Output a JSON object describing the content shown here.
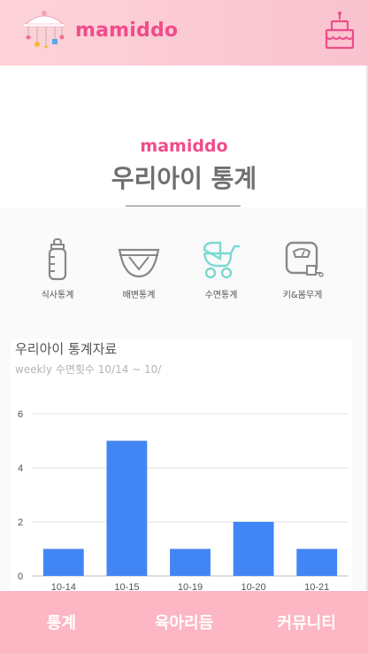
{
  "header": {
    "brand": "mamiddo",
    "icons": {
      "left": "baby-mobile-icon",
      "right": "birthday-cake-icon"
    },
    "colors": {
      "brand": "#f04c8c",
      "background": "#fdd3d8"
    }
  },
  "hero": {
    "brand": "mamiddo",
    "title": "우리아이 통계"
  },
  "categories": [
    {
      "label": "식사통계",
      "icon": "baby-bottle-icon",
      "color": "#888888"
    },
    {
      "label": "배변통계",
      "icon": "diaper-icon",
      "color": "#888888"
    },
    {
      "label": "수면통계",
      "icon": "stroller-icon",
      "color": "#7ad9d1",
      "selected": true
    },
    {
      "label": "키&몸무게",
      "icon": "scale-icon",
      "color": "#888888"
    }
  ],
  "stats": {
    "title": "우리아이 통계자료",
    "subtitle": "weekly 수면횟수 10/14 ~ 10/"
  },
  "chart_data": {
    "type": "bar",
    "categories": [
      "10-14",
      "10-15",
      "10-19",
      "10-20",
      "10-21"
    ],
    "values": [
      1,
      5,
      1,
      2,
      1
    ],
    "ylim": [
      0,
      6
    ],
    "yticks": [
      0,
      2,
      4,
      6
    ],
    "grid": true,
    "bar_color": "#4285f4"
  },
  "bottom_nav": [
    {
      "label": "통계"
    },
    {
      "label": "육아리듬"
    },
    {
      "label": "커뮤니티"
    }
  ]
}
